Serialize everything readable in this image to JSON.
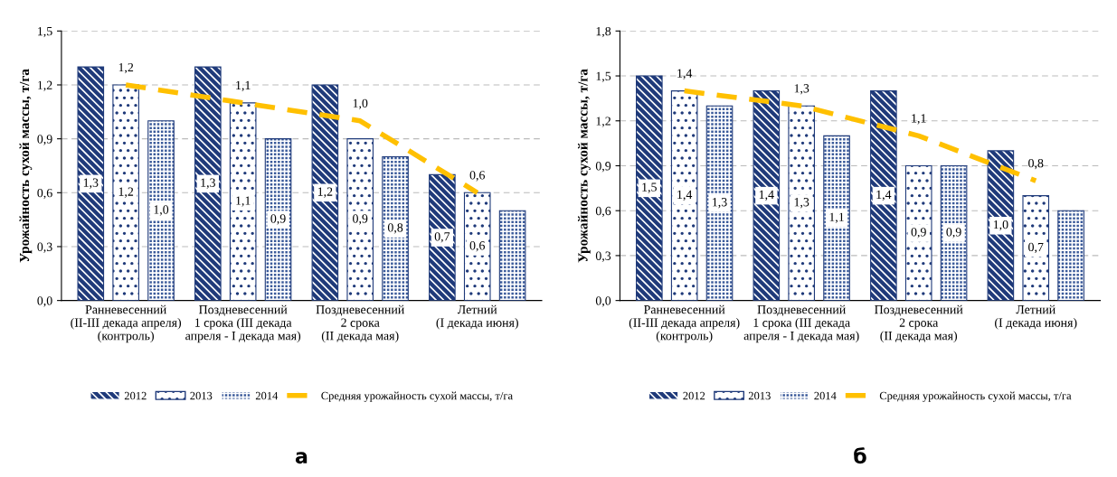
{
  "chart_data": [
    {
      "type": "bar",
      "ylabel": "Урожайность сухой массы, т/га",
      "categories": [
        "Ранневесенний\n(II-III декада апреля)\n(контроль)",
        "Поздневесенний\n1 срока (III декада\nапреля - I декада мая)",
        "Поздневесенний\n2 срока\n(II декада мая)",
        "Летний\n(I декада июня)"
      ],
      "series": [
        {
          "name": "2012",
          "color": "#1f3a7a",
          "values": [
            1.3,
            1.3,
            1.2,
            0.7
          ],
          "value_labels": [
            "1,3",
            "1,3",
            "1,2",
            "0,7"
          ]
        },
        {
          "name": "2013",
          "color": "#ffffff",
          "values": [
            1.2,
            1.1,
            0.9,
            0.6
          ],
          "value_labels": [
            "1,2",
            "1,1",
            "0,9",
            "0,6"
          ]
        },
        {
          "name": "2014",
          "color": "#3a5a9a",
          "values": [
            1.0,
            0.9,
            0.8,
            0.5
          ],
          "value_labels": [
            "1,0",
            "0,9",
            "0,8",
            null
          ]
        },
        {
          "name": "Средняя урожайность сухой массы, т/га",
          "type": "line",
          "color": "#ffc000",
          "line_style": "dashed",
          "values": [
            1.2,
            1.1,
            1.0,
            0.6
          ],
          "value_labels": [
            "1,2",
            "1,1",
            "1,0",
            "0,6"
          ]
        }
      ],
      "ylim": [
        0,
        1.5
      ],
      "yticks": [
        {
          "value": 0,
          "label": "0,0"
        },
        {
          "value": 0.3,
          "label": "0,3"
        },
        {
          "value": 0.6,
          "label": "0,6"
        },
        {
          "value": 0.9,
          "label": "0,9"
        },
        {
          "value": 1.2,
          "label": "1,2"
        },
        {
          "value": 1.5,
          "label": "1,5"
        }
      ],
      "grid": "y",
      "legend": "bottom",
      "annotations": [
        "а"
      ]
    },
    {
      "type": "bar",
      "ylabel": "Урожайность сухой массы, т/га",
      "categories": [
        "Ранневесенний\n(II-III декада апреля)\n(контроль)",
        "Поздневесенний\n1 срока (III декада\nапреля - I декада мая)",
        "Поздневесенний\n2 срока\n(II декада мая)",
        "Летний\n(I декада июня)"
      ],
      "series": [
        {
          "name": "2012",
          "color": "#1f3a7a",
          "values": [
            1.5,
            1.4,
            1.4,
            1.0
          ],
          "value_labels": [
            "1,5",
            "1,4",
            "1,4",
            "1,0"
          ]
        },
        {
          "name": "2013",
          "color": "#ffffff",
          "values": [
            1.4,
            1.3,
            0.9,
            0.7
          ],
          "value_labels": [
            "1,4",
            "1,3",
            "0,9",
            "0,7"
          ]
        },
        {
          "name": "2014",
          "color": "#3a5a9a",
          "values": [
            1.3,
            1.1,
            0.9,
            0.6
          ],
          "value_labels": [
            "1,3",
            "1,1",
            "0,9",
            null
          ]
        },
        {
          "name": "Средняя урожайность сухой массы, т/га",
          "type": "line",
          "color": "#ffc000",
          "line_style": "dashed",
          "values": [
            1.4,
            1.3,
            1.1,
            0.8
          ],
          "value_labels": [
            "1,4",
            "1,3",
            "1,1",
            "0,8"
          ]
        }
      ],
      "ylim": [
        0,
        1.8
      ],
      "yticks": [
        {
          "value": 0,
          "label": "0,0"
        },
        {
          "value": 0.3,
          "label": "0,3"
        },
        {
          "value": 0.6,
          "label": "0,6"
        },
        {
          "value": 0.9,
          "label": "0,9"
        },
        {
          "value": 1.2,
          "label": "1,2"
        },
        {
          "value": 1.5,
          "label": "1,5"
        },
        {
          "value": 1.8,
          "label": "1,8"
        }
      ],
      "grid": "y",
      "legend": "bottom",
      "annotations": [
        "б"
      ]
    }
  ]
}
